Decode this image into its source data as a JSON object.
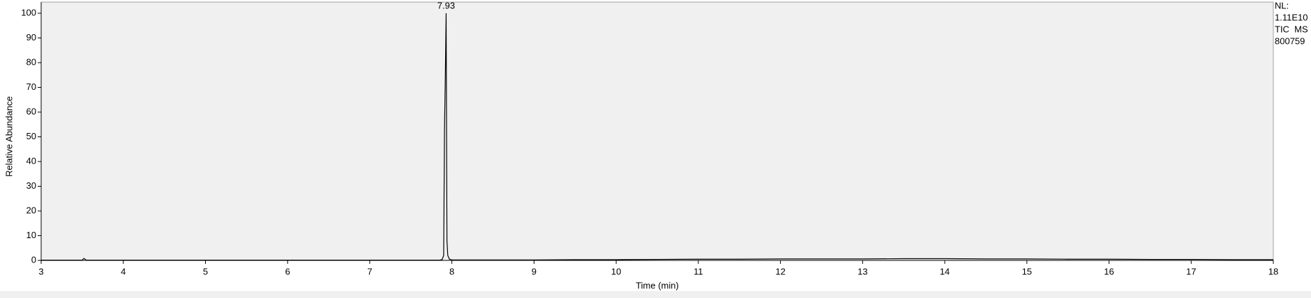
{
  "chart_data": {
    "type": "line",
    "x_label": "Time (min)",
    "y_label": "Relative Abundance",
    "x": [
      3,
      3.5,
      3.52,
      3.55,
      4,
      4.5,
      5,
      5.5,
      6,
      6.5,
      7,
      7.5,
      7.85,
      7.88,
      7.9,
      7.91,
      7.92,
      7.93,
      7.94,
      7.95,
      7.97,
      8,
      8.5,
      9,
      9.5,
      10,
      10.5,
      11,
      11.5,
      12,
      12.5,
      13,
      13.5,
      14,
      14.5,
      15,
      15.5,
      16,
      16.5,
      17,
      17.5,
      18
    ],
    "series": [
      {
        "color": "#000000",
        "values": [
          0.1,
          0.1,
          0.8,
          0.1,
          0.1,
          0.1,
          0.1,
          0.1,
          0.1,
          0.1,
          0.1,
          0.1,
          0.1,
          0.3,
          2,
          53,
          74,
          100,
          8,
          2,
          0.5,
          0.2,
          0.2,
          0.2,
          0.3,
          0.3,
          0.4,
          0.5,
          0.5,
          0.6,
          0.6,
          0.6,
          0.7,
          0.7,
          0.6,
          0.6,
          0.5,
          0.5,
          0.4,
          0.4,
          0.3,
          0.3
        ]
      }
    ],
    "annotations": [
      {
        "text": "7.93",
        "x": 7.93,
        "y": 100
      }
    ],
    "info": [
      "NL:",
      "1.11E10",
      "TIC  MS",
      "800759"
    ],
    "xlim": [
      3,
      18
    ],
    "ylim": [
      0,
      100
    ],
    "xticks": [
      3,
      4,
      5,
      6,
      7,
      8,
      9,
      10,
      11,
      12,
      13,
      14,
      15,
      16,
      17,
      18
    ],
    "yticks": [
      0,
      10,
      20,
      30,
      40,
      50,
      60,
      70,
      80,
      90,
      100
    ]
  }
}
